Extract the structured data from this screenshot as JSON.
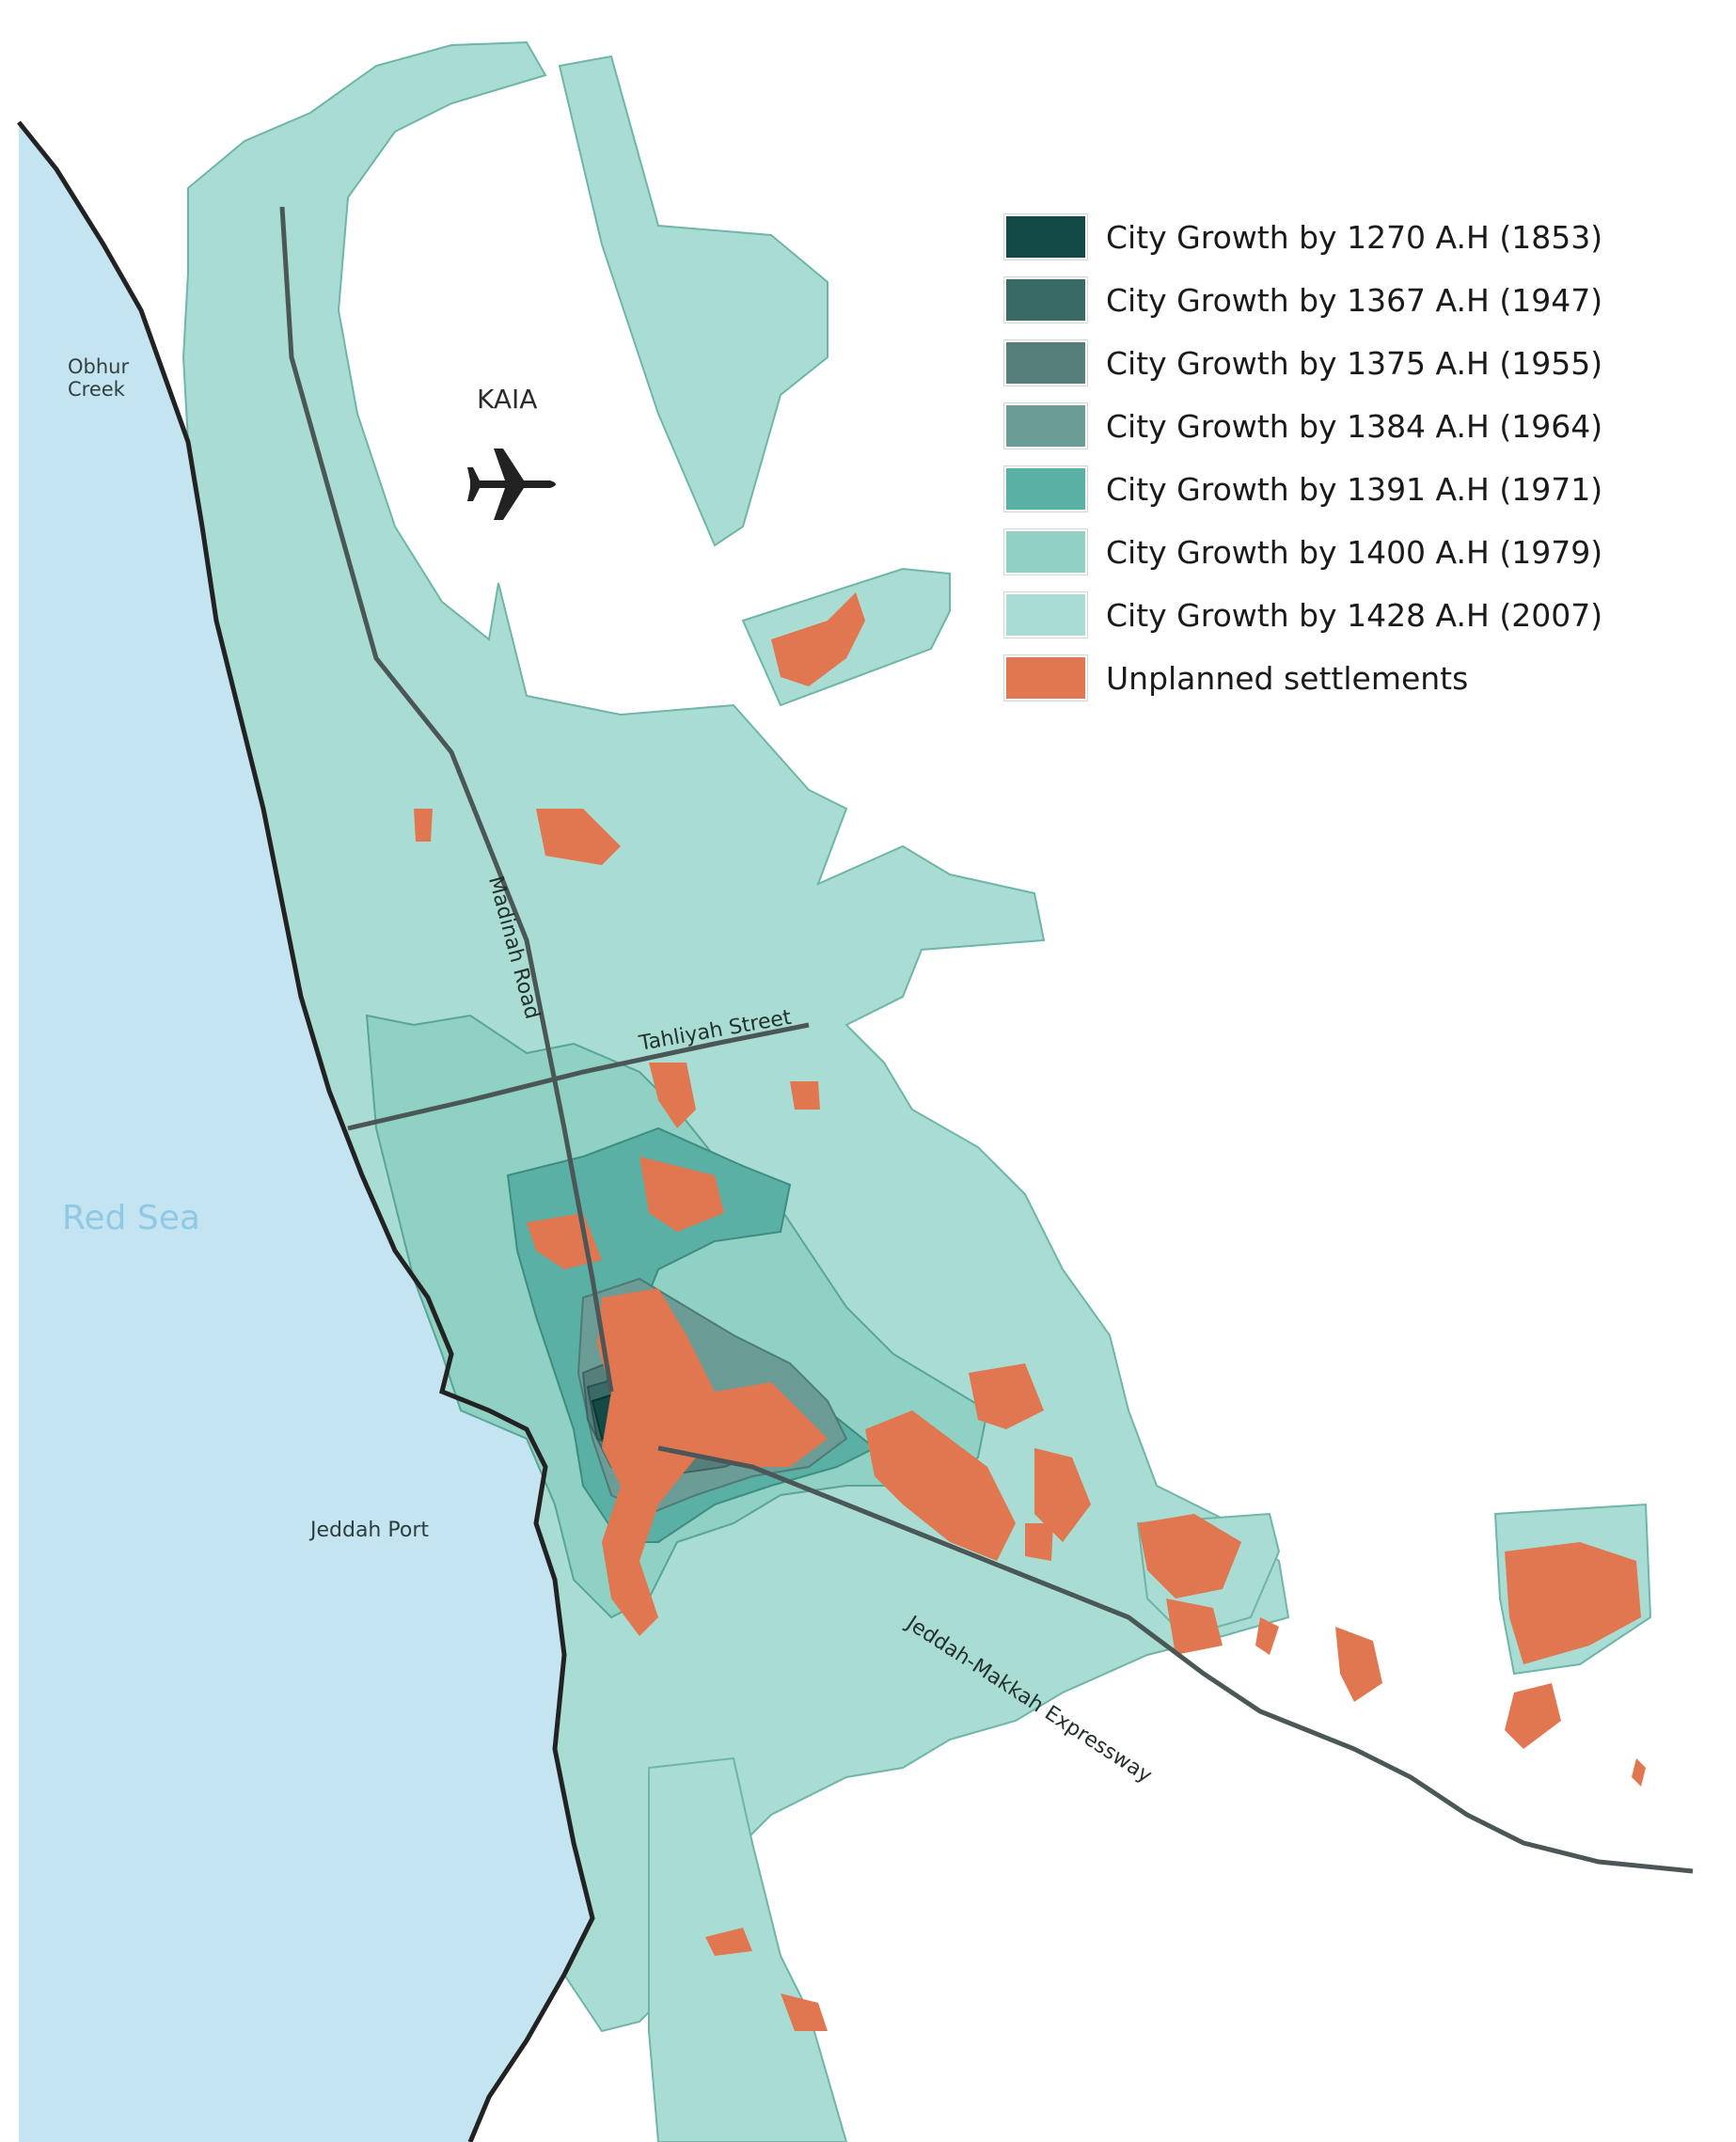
{
  "colors": {
    "sea": "#c4e4f2",
    "background": "#ffffff",
    "growth_2007": "#a9dcd2",
    "growth_1979": "#8fd1c3",
    "growth_1971": "#5ab0a4",
    "growth_1964": "#6c9c96",
    "growth_1955": "#567f7c",
    "growth_1947": "#3a6a66",
    "growth_1853": "#134a45",
    "unplanned": "#e07750",
    "road": "#4b5756",
    "coast": "#222222"
  },
  "legend": [
    {
      "label": "City Growth by 1270 A.H (1853)",
      "color": "#134a45"
    },
    {
      "label": "City Growth by 1367 A.H (1947)",
      "color": "#3a6a66"
    },
    {
      "label": "City Growth by 1375 A.H (1955)",
      "color": "#567f7c"
    },
    {
      "label": "City Growth by 1384 A.H (1964)",
      "color": "#6c9c96"
    },
    {
      "label": "City Growth by 1391 A.H (1971)",
      "color": "#5ab0a4"
    },
    {
      "label": "City Growth by 1400 A.H (1979)",
      "color": "#8fd1c3"
    },
    {
      "label": "City Growth by 1428 A.H (2007)",
      "color": "#a9dcd2"
    },
    {
      "label": "Unplanned settlements",
      "color": "#e07750"
    }
  ],
  "labels": {
    "obhur_creek_line1": "Obhur",
    "obhur_creek_line2": "Creek",
    "kaia": "KAIA",
    "red_sea": "Red Sea",
    "jeddah_port": "Jeddah Port",
    "madinah_road": "Madinah Road",
    "tahliyah_street": "Tahliyah Street",
    "expressway": "Jeddah-Makkah Expressway"
  },
  "icons": {
    "airport": "airplane-icon"
  }
}
